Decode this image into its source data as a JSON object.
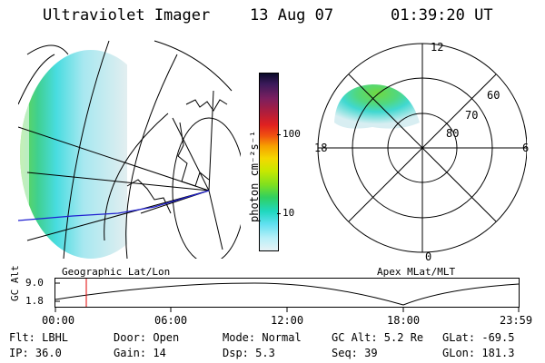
{
  "header": {
    "instrument": "Ultraviolet Imager",
    "date": "13 Aug 07",
    "time": "01:39:20 UT"
  },
  "colorbar": {
    "unit_label": "photon cm⁻²s⁻¹",
    "ticks": [
      "100",
      "10"
    ],
    "colors": [
      "#0a0a2a",
      "#3b1a5a",
      "#7a1f5f",
      "#b01e3c",
      "#e02020",
      "#f05010",
      "#f6a000",
      "#f4d800",
      "#c8e800",
      "#7ee020",
      "#30d060",
      "#20d8c0",
      "#60e0f0",
      "#b8f0f8",
      "#e6f2f6"
    ]
  },
  "geo_map": {
    "label": "Geographic Lat/Lon"
  },
  "polar_plot": {
    "label": "Apex MLat/MLT",
    "mlt_labels": {
      "top": "12",
      "left": "18",
      "right": "6",
      "bottom": "0"
    },
    "lat_labels": [
      "60",
      "70",
      "80"
    ]
  },
  "altitude_plot": {
    "ylabel": "GC Alt",
    "yticks": [
      "9.0",
      "1.8"
    ],
    "xticks": [
      "00:00",
      "06:00",
      "12:00",
      "18:00",
      "23:59"
    ],
    "current_marker_color": "#e00000"
  },
  "info": {
    "flt": "Flt: LBHL",
    "ip": "IP: 36.0",
    "door": "Door: Open",
    "gain": "Gain: 14",
    "mode": "Mode: Normal",
    "dsp": "Dsp:    5.3",
    "gc_alt": "GC Alt: 5.2 Re",
    "seq": "Seq: 39",
    "glat": "GLat: -69.5",
    "glon": "GLon: 181.3"
  }
}
